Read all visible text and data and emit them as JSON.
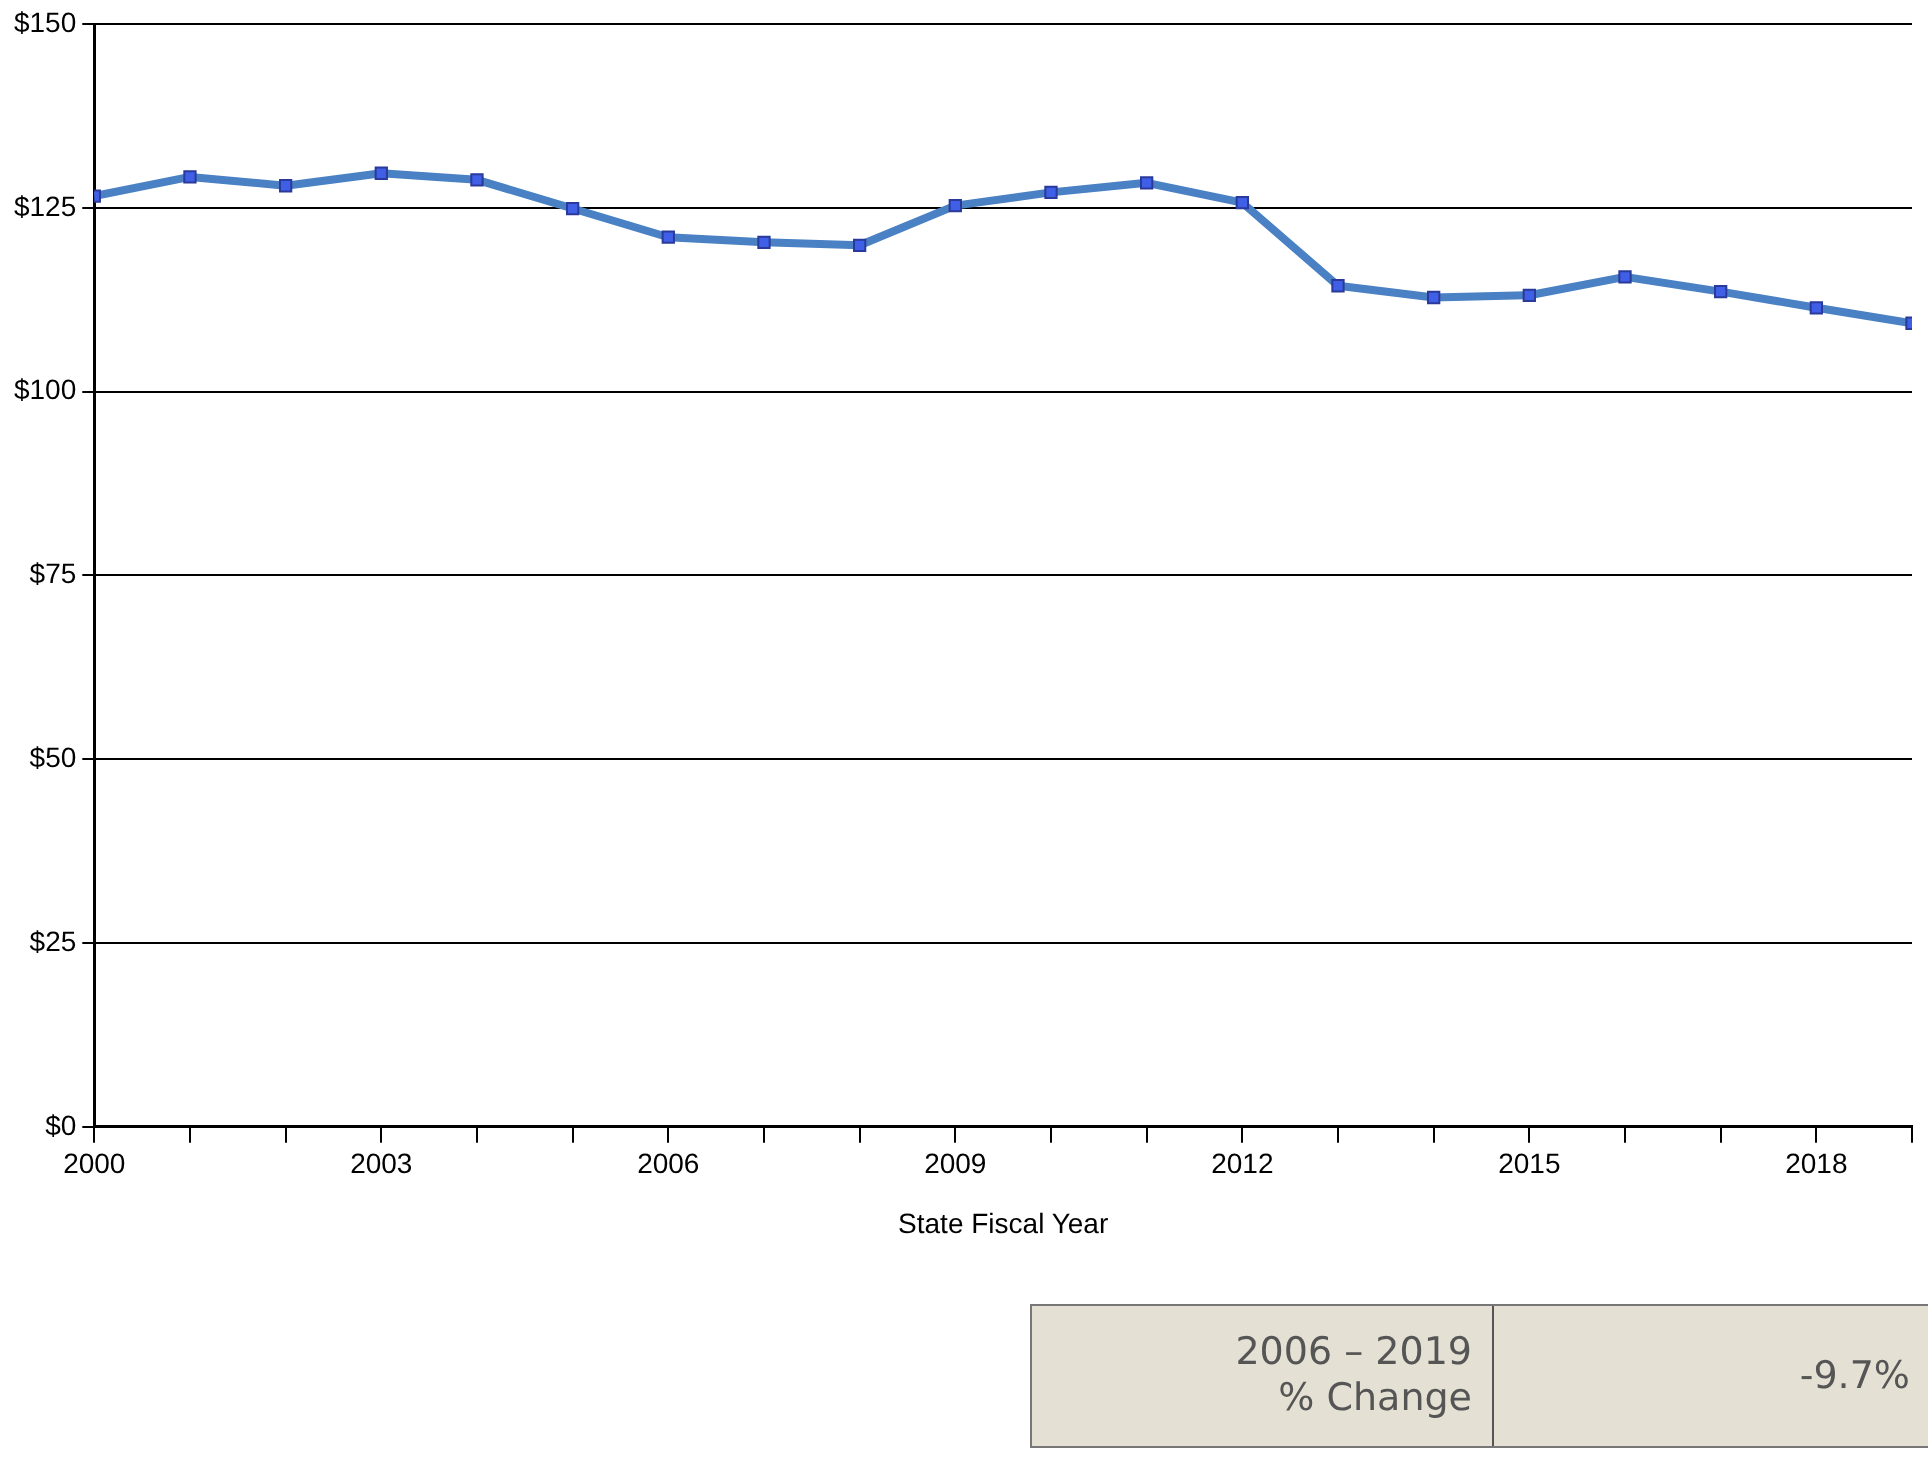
{
  "chart_data": {
    "type": "line",
    "xlabel": "State Fiscal Year",
    "x": [
      2000,
      2001,
      2002,
      2003,
      2004,
      2005,
      2006,
      2007,
      2008,
      2009,
      2010,
      2011,
      2012,
      2013,
      2014,
      2015,
      2016,
      2017,
      2018,
      2019
    ],
    "series": [
      {
        "color": "#4a80c4",
        "values": [
          126.6,
          129.2,
          128.0,
          129.7,
          128.8,
          124.9,
          121.0,
          120.3,
          119.9,
          125.3,
          127.1,
          128.4,
          125.7,
          114.4,
          112.8,
          113.1,
          115.6,
          113.6,
          111.4,
          109.3
        ]
      }
    ],
    "xlim": [
      2000,
      2019
    ],
    "xticks": [
      2000,
      {
        "value": 2001,
        "label": null
      },
      {
        "value": 2002,
        "label": null
      },
      2003,
      {
        "value": 2004,
        "label": null
      },
      {
        "value": 2005,
        "label": null
      },
      2006,
      {
        "value": 2007,
        "label": null
      },
      {
        "value": 2008,
        "label": null
      },
      2009,
      {
        "value": 2010,
        "label": null
      },
      {
        "value": 2011,
        "label": null
      },
      2012,
      {
        "value": 2013,
        "label": null
      },
      {
        "value": 2014,
        "label": null
      },
      2015,
      {
        "value": 2016,
        "label": null
      },
      {
        "value": 2017,
        "label": null
      },
      2018,
      {
        "value": 2019,
        "label": null
      }
    ],
    "ylim": [
      0,
      150
    ],
    "yticks": [
      {
        "value": 0,
        "label": "$0"
      },
      {
        "value": 25,
        "label": "$25"
      },
      {
        "value": 50,
        "label": "$50"
      },
      {
        "value": 75,
        "label": "$75"
      },
      {
        "value": 100,
        "label": "$100"
      },
      {
        "value": 125,
        "label": "$125"
      },
      {
        "value": 150,
        "label": "$150"
      }
    ],
    "grid": "y",
    "legend": false,
    "marker": "square",
    "line_style": "solid",
    "annotations": [
      "2006 – 2019\n% Change",
      "-9.7%"
    ]
  }
}
